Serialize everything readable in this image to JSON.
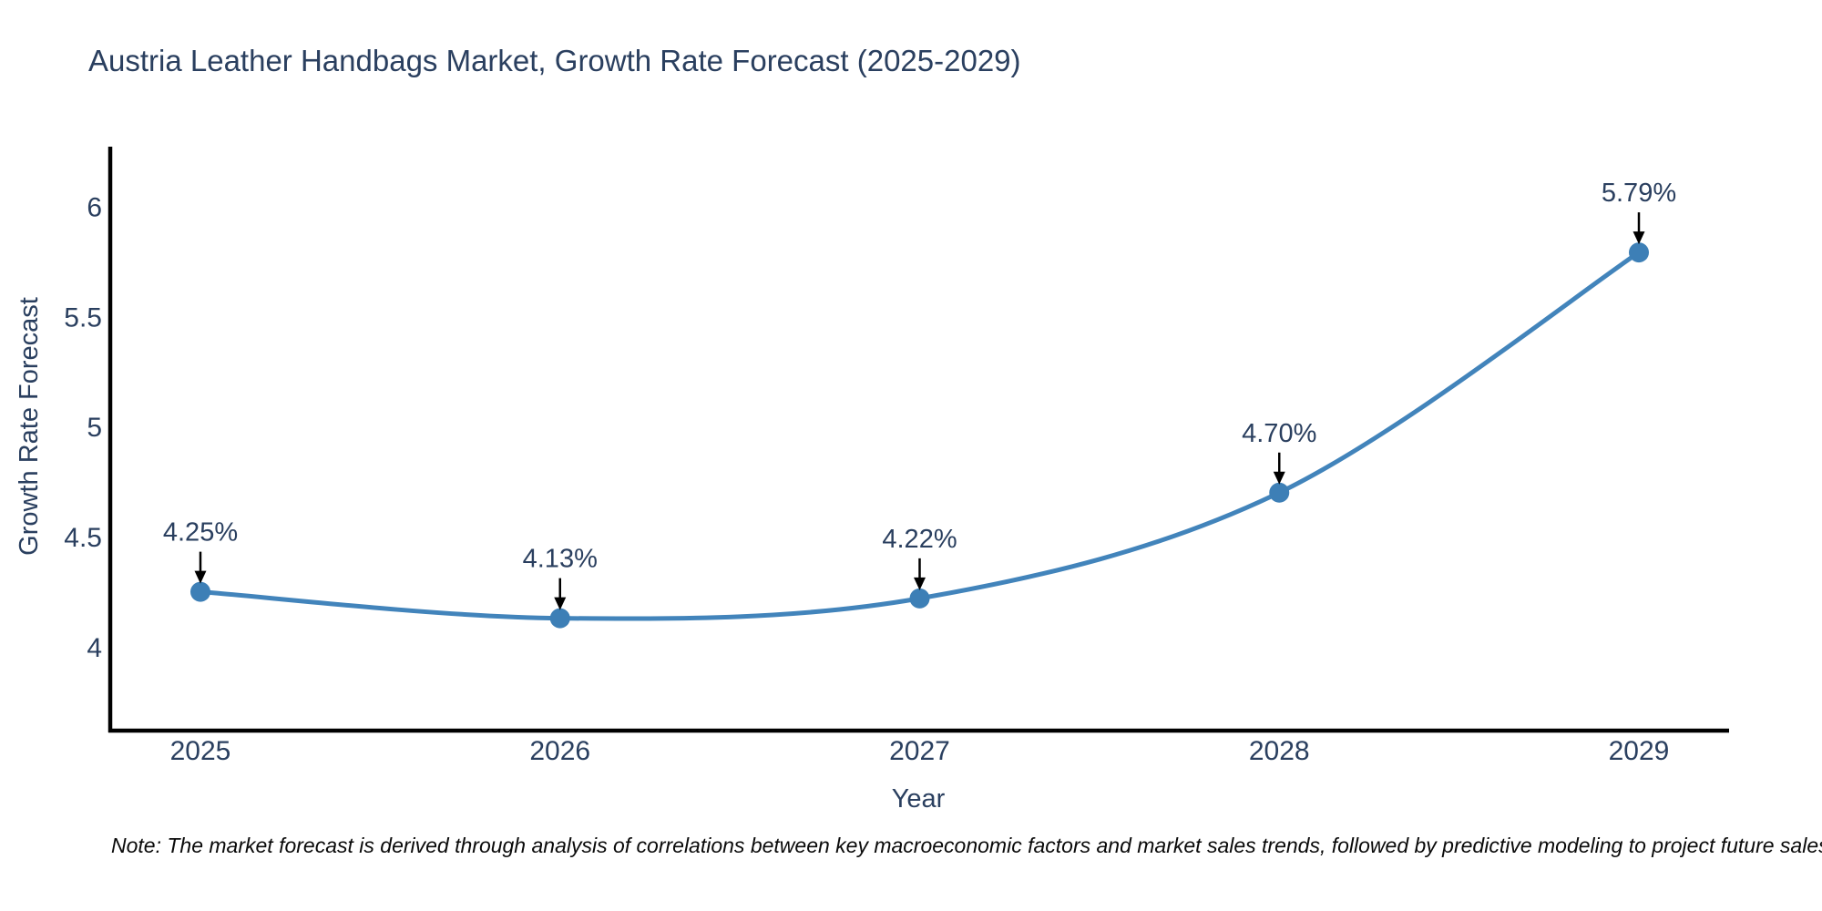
{
  "page": {
    "background": "#ffffff"
  },
  "header": {
    "title": "Austria Leather Handbags Market, Growth Rate Forecast (2025-2029)"
  },
  "footnote": {
    "text": "Note: The market forecast is derived through analysis of correlations between key macroeconomic factors and market sales trends, followed by predictive modeling to project future sales"
  },
  "colors": {
    "line": "#4284bb",
    "marker": "#3d7fb6",
    "axis_line": "#000000",
    "label_text": "#2a3f5f",
    "annotation_arrow": "#000000",
    "note_text": "#0a0a0a",
    "background": "#ffffff"
  },
  "chart_data": {
    "type": "line",
    "title": "Austria Leather Handbags Market, Growth Rate Forecast (2025-2029)",
    "xlabel": "Year",
    "ylabel": "Growth Rate Forecast",
    "x": [
      2025,
      2026,
      2027,
      2028,
      2029
    ],
    "series": [
      {
        "name": "Growth Rate Forecast",
        "values": [
          4.25,
          4.13,
          4.22,
          4.7,
          5.79
        ]
      }
    ],
    "point_labels": [
      "4.25%",
      "4.13%",
      "4.22%",
      "4.70%",
      "5.79%"
    ],
    "xtick_labels": [
      "2025",
      "2026",
      "2027",
      "2028",
      "2029"
    ],
    "ytick_values": [
      4,
      4.5,
      5,
      5.5,
      6
    ],
    "ytick_labels": [
      "4",
      "4.5",
      "5",
      "5.5",
      "6"
    ],
    "ylim": [
      3.62,
      6.27
    ],
    "line_shape": "spline",
    "markers": true,
    "grid": false,
    "legend": "none",
    "annotations": "each data point labeled with its percentage value and a black downward arrow pointing at the marker"
  }
}
